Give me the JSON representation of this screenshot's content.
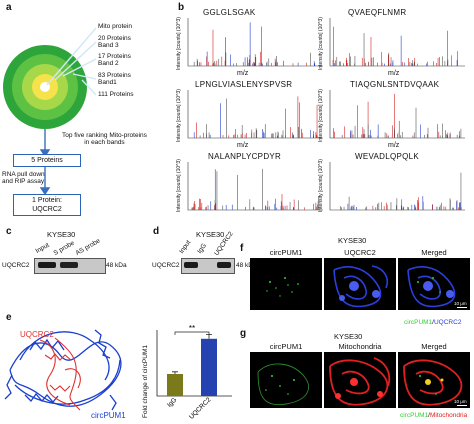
{
  "panel_a": {
    "label": "a",
    "rings": [
      {
        "label": "Mito protein",
        "color": "#ffffff"
      },
      {
        "label": "20 Proteins\nBand 3",
        "color": "#f6e24a"
      },
      {
        "label": "17 Proteins\nBand 2",
        "color": "#a6d84a"
      },
      {
        "label": "83 Proteins\nBand1",
        "color": "#5dc143"
      },
      {
        "label": "111 Proteins",
        "color": "#2ea53a"
      }
    ],
    "step1": "Top five ranking Mito-proteins\nin each bands",
    "box1": "5 Proteins",
    "step2": "RNA pull down\nand RIP assay",
    "box2": "1 Protein:\nUQCRC2"
  },
  "panel_b": {
    "label": "b",
    "peptides": [
      "GGLGLSGAK",
      "QVAEQFLNMR",
      "LPNGLVIASLENYSPVSR",
      "TIAQGNLSNTDVQAAK",
      "NALANPLYCPDYR",
      "WEVADLQPQLK"
    ],
    "ylabel": "Intensity [counts] (10^3)",
    "xlabel": "m/z"
  },
  "panel_c": {
    "label": "c",
    "cell": "KYSE30",
    "lanes": [
      "Input",
      "S probe",
      "AS probe"
    ],
    "protein": "UQCRC2",
    "size": "48 kDa"
  },
  "panel_d": {
    "label": "d",
    "cell": "KYSE30",
    "lanes": [
      "Input",
      "IgG",
      "UQCRC2"
    ],
    "protein": "UQCRC2",
    "size": "48 kDa"
  },
  "panel_e": {
    "label": "e",
    "protein_label": "UQCRC2",
    "rna_label": "circPUM1",
    "chart_data": {
      "type": "bar",
      "categories": [
        "IgG",
        "UQCRC2"
      ],
      "values": [
        1.0,
        2.6
      ],
      "errors": [
        0.1,
        0.2
      ],
      "ylabel": "Fold change of circPUM1",
      "ylim": [
        0,
        3
      ],
      "significance": "**",
      "colors": [
        "#7a7a1a",
        "#2443b0"
      ]
    }
  },
  "panel_f": {
    "label": "f",
    "cell": "KYSE30",
    "titles": [
      "circPUM1",
      "UQCRC2",
      "Merged"
    ],
    "legend_green": "circPUM1",
    "legend_sep": "/",
    "legend_other": "UQCRC2",
    "legend_other_color": "#2b3fe0",
    "scale": "10 μm"
  },
  "panel_g": {
    "label": "g",
    "cell": "KYSE30",
    "titles": [
      "circPUM1",
      "Mitochondria",
      "Merged"
    ],
    "legend_green": "circPUM1",
    "legend_sep": "/",
    "legend_other": "Mitochondria",
    "legend_other_color": "#e02020",
    "scale": "10 μm"
  }
}
